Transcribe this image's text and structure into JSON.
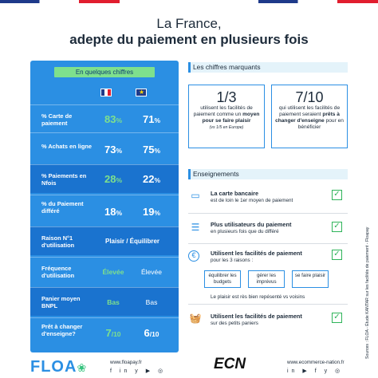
{
  "title": {
    "line1": "La France,",
    "line2": "adepte du paiement en plusieurs fois"
  },
  "left_panel": {
    "heading": "En quelques chiffres",
    "rows": [
      {
        "label": "% Carte de paiement",
        "fr": "83",
        "eu": "71",
        "unit": "%"
      },
      {
        "label": "% Achats en ligne",
        "fr": "73",
        "eu": "75",
        "unit": "%"
      },
      {
        "label": "% Paiements en Nfois",
        "fr": "28",
        "eu": "22",
        "unit": "%"
      },
      {
        "label": "% du Paiement différé",
        "fr": "18",
        "eu": "19",
        "unit": "%"
      },
      {
        "label": "Raison N°1 d'utilisation",
        "value": "Plaisir / Équilibrer"
      },
      {
        "label": "Fréquence d'utilisation",
        "fr": "Élevée",
        "eu": "Élevée"
      },
      {
        "label": "Panier moyen BNPL",
        "fr": "Bas",
        "eu": "Bas"
      },
      {
        "label": "Prêt à changer d'enseigne?",
        "fr": "7",
        "eu": "6",
        "unit": "/10"
      }
    ]
  },
  "chiffres": {
    "heading": "Les chiffres marquants",
    "stat1": {
      "value": "1/3",
      "text_a": "utilisent les facilités de paiement comme",
      "text_b": "un ",
      "bold": "moyen pour se faire plaisir",
      "note": "(vs 1/5 en Europe)"
    },
    "stat2": {
      "value": "7/10",
      "text_a": "qui utilisent les facilités de paiement seraient ",
      "bold": "prêts à changer d'enseigne",
      "text_c": " pour en bénéficier"
    }
  },
  "enseignements": {
    "heading": "Enseignements",
    "items": [
      {
        "title": "La carte bancaire",
        "sub": "est de loin le 1er moyen de paiement"
      },
      {
        "title": "Plus utilisateurs du paiement",
        "sub": "en plusieurs fois que du différé"
      },
      {
        "title": "Utilisent les facilités de paiement",
        "sub": "pour les 3 raisons :",
        "extra": "Le plaisir est rès bien repésenté vs voisins"
      },
      {
        "title": "Utilisent les facilités de paiement",
        "sub": "sur des petits paniers"
      }
    ],
    "reasons": [
      "équilibrer les budgets",
      "gérer les imprévus",
      "se faire plaisir"
    ]
  },
  "sources": "Sources : FLOA - Étude KANTAR sur les facilités de paiement - Floapay",
  "footer": {
    "floa_logo": "FLOA",
    "floa_url": "www.floapay.fr",
    "ecn_logo": "ECN",
    "ecn_url": "www.ecommerce-nation.fr",
    "socials_left": "f in y ▶ ◎",
    "socials_right": "in ▶ f y ◎"
  },
  "colors": {
    "panel_blue": "#2b8fe3",
    "row_dark": "#1a73cf",
    "accent_green": "#7ee08d",
    "check_green": "#2fb45a"
  }
}
